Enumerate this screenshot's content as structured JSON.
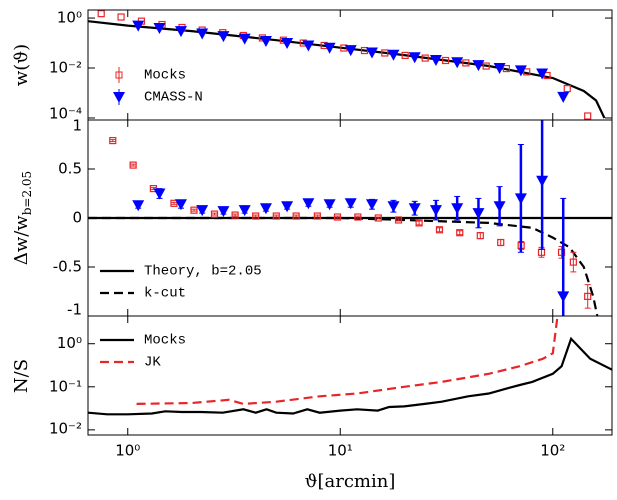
{
  "chart_data": [
    {
      "type": "line",
      "ylabel": "w(ϑ)",
      "ylog": true,
      "xlim": [
        0.65,
        190
      ],
      "ylim": [
        8.3e-05,
        2.1
      ],
      "yticks": [
        {
          "value": 1,
          "label": "10⁰"
        },
        {
          "value": 0.01,
          "label": "10⁻²"
        },
        {
          "value": 0.0001,
          "label": "10⁻⁴"
        }
      ],
      "legend": "lower left",
      "series": [
        {
          "style": "solid",
          "color": "#000000",
          "x": [
            0.65,
            1,
            2,
            5,
            10,
            20,
            50,
            100,
            140,
            160,
            175
          ],
          "values": [
            0.75,
            0.5,
            0.3,
            0.13,
            0.065,
            0.033,
            0.012,
            0.004,
            0.0012,
            0.0005,
            0.0001
          ]
        },
        {
          "name": "Mocks",
          "style": "markers",
          "marker": "square",
          "color": "#e8262a",
          "x": [
            0.75,
            0.93,
            1.16,
            1.45,
            1.8,
            2.24,
            2.8,
            3.5,
            4.3,
            5.4,
            6.7,
            8.4,
            10.4,
            13,
            16.2,
            20.2,
            25.1,
            31.3,
            39,
            48.6,
            60.5,
            75.4,
            94,
            117,
            146
          ],
          "values": [
            1.5,
            1.1,
            0.75,
            0.55,
            0.42,
            0.33,
            0.26,
            0.2,
            0.16,
            0.13,
            0.1,
            0.08,
            0.063,
            0.05,
            0.04,
            0.032,
            0.025,
            0.02,
            0.016,
            0.012,
            0.0095,
            0.007,
            0.005,
            0.0015,
            0.00012
          ]
        },
        {
          "name": "CMASS-N",
          "style": "markers",
          "marker": "triangle",
          "color": "#0000ff",
          "x": [
            1.12,
            1.41,
            1.78,
            2.24,
            2.82,
            3.55,
            4.47,
            5.62,
            7.08,
            8.91,
            11.2,
            14.1,
            17.8,
            22.4,
            28.2,
            35.5,
            44.7,
            56.2,
            70.8,
            89.1,
            112
          ],
          "values": [
            0.5,
            0.4,
            0.3,
            0.24,
            0.19,
            0.15,
            0.12,
            0.1,
            0.08,
            0.065,
            0.052,
            0.042,
            0.034,
            0.027,
            0.021,
            0.017,
            0.013,
            0.01,
            0.008,
            0.006,
            0.0007
          ]
        }
      ]
    },
    {
      "type": "line",
      "ylabel": "Δw/w",
      "ylabel_sub": "b=2.05",
      "ylog": false,
      "xlim": [
        0.65,
        190
      ],
      "ylim": [
        -1,
        1
      ],
      "yticks": [
        -1,
        -0.5,
        0,
        0.5,
        1
      ],
      "legend": "lower left",
      "series": [
        {
          "name": "Theory, b=2.05",
          "style": "solid",
          "color": "#000000",
          "x": [
            0.65,
            190
          ],
          "values": [
            0,
            0
          ]
        },
        {
          "name": "k-cut",
          "style": "dashed",
          "color": "#000000",
          "x": [
            0.65,
            10,
            20,
            50,
            80,
            100,
            120,
            140,
            155,
            162
          ],
          "values": [
            0,
            0,
            -0.02,
            -0.05,
            -0.1,
            -0.2,
            -0.3,
            -0.5,
            -0.8,
            -1
          ]
        },
        {
          "style": "markers",
          "marker": "square",
          "color": "#e8262a",
          "x": [
            0.85,
            1.06,
            1.32,
            1.65,
            2.05,
            2.56,
            3.2,
            4.0,
            5.0,
            6.2,
            7.8,
            9.7,
            12.1,
            15.1,
            18.8,
            23.5,
            29.3,
            36.5,
            45.6,
            56.9,
            71,
            88.5,
            110,
            125,
            146
          ],
          "values": [
            0.79,
            0.54,
            0.3,
            0.15,
            0.08,
            0.04,
            0.03,
            0.02,
            0.02,
            0.02,
            0.02,
            0.01,
            0.01,
            0,
            -0.02,
            -0.05,
            -0.12,
            -0.15,
            -0.18,
            -0.25,
            -0.28,
            -0.35,
            -0.35,
            -0.45,
            -0.8
          ],
          "errors": [
            0.01,
            0.01,
            0.01,
            0.01,
            0.01,
            0.01,
            0.01,
            0.01,
            0.01,
            0.01,
            0.01,
            0.01,
            0.01,
            0.01,
            0.01,
            0.02,
            0.02,
            0.02,
            0.03,
            0.03,
            0.04,
            0.05,
            0.06,
            0.1,
            0.12
          ]
        },
        {
          "style": "markers",
          "marker": "triangle",
          "color": "#0000ff",
          "x": [
            1.12,
            1.41,
            1.78,
            2.24,
            2.82,
            3.55,
            4.47,
            5.62,
            7.08,
            8.91,
            11.2,
            14.1,
            17.8,
            22.4,
            28.2,
            35.5,
            44.7,
            56.2,
            70.8,
            89.1,
            112
          ],
          "values": [
            0.13,
            0.25,
            0.14,
            0.08,
            0.07,
            0.08,
            0.1,
            0.12,
            0.15,
            0.14,
            0.15,
            0.14,
            0.12,
            0.1,
            0.08,
            0.1,
            0.05,
            0.12,
            0.2,
            0.38,
            -0.8
          ],
          "errors": [
            0.03,
            0.05,
            0.04,
            0.03,
            0.03,
            0.03,
            0.03,
            0.03,
            0.03,
            0.03,
            0.04,
            0.05,
            0.06,
            0.07,
            0.1,
            0.12,
            0.15,
            0.2,
            0.55,
            0.7,
            1.0
          ]
        }
      ]
    },
    {
      "type": "line",
      "ylabel": "N/S",
      "xlabel": "ϑ[arcmin]",
      "ylog": true,
      "xlim": [
        0.65,
        190
      ],
      "ylim": [
        0.0076,
        4.4
      ],
      "xticks": [
        {
          "value": 1,
          "label": "10⁰"
        },
        {
          "value": 10,
          "label": "10¹"
        },
        {
          "value": 100,
          "label": "10²"
        }
      ],
      "yticks": [
        {
          "value": 1,
          "label": "10⁰"
        },
        {
          "value": 0.1,
          "label": "10⁻¹"
        },
        {
          "value": 0.01,
          "label": "10⁻²"
        }
      ],
      "legend": "upper left",
      "series": [
        {
          "name": "Mocks",
          "style": "solid",
          "color": "#000000",
          "x": [
            0.65,
            0.8,
            1,
            1.3,
            1.5,
            1.8,
            2.2,
            2.8,
            3.5,
            4,
            4.5,
            5,
            6,
            7,
            8,
            10,
            12,
            15,
            17,
            20,
            25,
            30,
            40,
            50,
            60,
            70,
            80,
            100,
            110,
            122,
            150,
            190
          ],
          "values": [
            0.025,
            0.023,
            0.023,
            0.024,
            0.027,
            0.026,
            0.026,
            0.025,
            0.03,
            0.025,
            0.03,
            0.025,
            0.024,
            0.03,
            0.025,
            0.028,
            0.03,
            0.028,
            0.034,
            0.035,
            0.04,
            0.045,
            0.06,
            0.07,
            0.09,
            0.11,
            0.13,
            0.2,
            0.3,
            1.3,
            0.45,
            0.25
          ]
        },
        {
          "name": "JK",
          "style": "dashed",
          "color": "#e8262a",
          "x": [
            1.1,
            2,
            3,
            3.5,
            5,
            8,
            12,
            20,
            30,
            50,
            70,
            90,
            100,
            105
          ],
          "values": [
            0.04,
            0.042,
            0.05,
            0.04,
            0.045,
            0.06,
            0.07,
            0.1,
            0.13,
            0.2,
            0.3,
            0.45,
            0.6,
            4
          ]
        }
      ]
    }
  ]
}
